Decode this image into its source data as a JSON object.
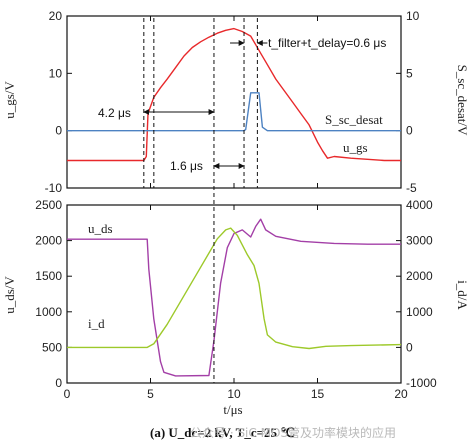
{
  "chart_data": [
    {
      "type": "line",
      "panel": "top",
      "x": {
        "label_visible": false,
        "range": [
          0,
          20
        ],
        "ticks": [
          0,
          5,
          10,
          15,
          20
        ]
      },
      "y_left": {
        "label": "u_gs/V",
        "range": [
          -10,
          20
        ],
        "ticks": [
          -10,
          0,
          10,
          20
        ]
      },
      "y_right": {
        "label": "S_sc_desat",
        "range": [
          -5,
          10
        ],
        "ticks": [
          -5,
          0,
          5,
          10
        ]
      },
      "grid": false,
      "series": [
        {
          "name": "u_gs",
          "axis": "left",
          "color": "#e8292b",
          "points": [
            [
              0,
              -5.2
            ],
            [
              4.6,
              -5.2
            ],
            [
              4.75,
              -4.5
            ],
            [
              4.85,
              3.0
            ],
            [
              5.2,
              5.8
            ],
            [
              5.6,
              7.5
            ],
            [
              6.0,
              9.0
            ],
            [
              6.5,
              11.0
            ],
            [
              7.0,
              13.0
            ],
            [
              7.5,
              14.5
            ],
            [
              8.0,
              15.5
            ],
            [
              8.5,
              16.3
            ],
            [
              9.0,
              17.0
            ],
            [
              9.5,
              17.5
            ],
            [
              10.0,
              17.8
            ],
            [
              10.5,
              17.3
            ],
            [
              11.0,
              16.5
            ],
            [
              11.3,
              15.0
            ],
            [
              11.6,
              13.5
            ],
            [
              12.0,
              11.5
            ],
            [
              12.5,
              9.0
            ],
            [
              13.0,
              7.0
            ],
            [
              13.5,
              5.0
            ],
            [
              14.0,
              3.0
            ],
            [
              14.5,
              1.0
            ],
            [
              15.0,
              -2.0
            ],
            [
              15.3,
              -3.5
            ],
            [
              15.6,
              -4.8
            ],
            [
              16.0,
              -4.5
            ],
            [
              17.0,
              -4.8
            ],
            [
              18.0,
              -5.0
            ],
            [
              19.0,
              -5.2
            ],
            [
              20.0,
              -5.2
            ]
          ]
        },
        {
          "name": "S_sc_desat",
          "axis": "right",
          "color": "#4d82c2",
          "points": [
            [
              0,
              0
            ],
            [
              10.6,
              0
            ],
            [
              10.7,
              0.1
            ],
            [
              11.0,
              3.3
            ],
            [
              11.5,
              3.3
            ],
            [
              11.7,
              0.3
            ],
            [
              12.0,
              0
            ],
            [
              20,
              0
            ]
          ]
        }
      ],
      "annotations": [
        {
          "text": "4.2 μs"
        },
        {
          "text": "1.6 μs"
        },
        {
          "text": "t_filter+t_delay=0.6 μs"
        }
      ]
    },
    {
      "type": "line",
      "panel": "bottom",
      "x": {
        "label": "t/μs",
        "range": [
          0,
          20
        ],
        "ticks": [
          0,
          5,
          10,
          15,
          20
        ]
      },
      "y_left": {
        "label": "u_ds/V",
        "range": [
          0,
          2500
        ],
        "ticks": [
          0,
          500,
          1000,
          1500,
          2000,
          2500
        ]
      },
      "y_right": {
        "label": "i_d/A",
        "range": [
          -1000,
          4000
        ],
        "ticks": [
          -1000,
          0,
          1000,
          2000,
          3000,
          4000
        ]
      },
      "grid": false,
      "series": [
        {
          "name": "u_ds",
          "axis": "left",
          "color": "#a33fa7",
          "points": [
            [
              0,
              2020
            ],
            [
              4.8,
              2020
            ],
            [
              4.9,
              1600
            ],
            [
              5.2,
              900
            ],
            [
              5.6,
              300
            ],
            [
              5.8,
              150
            ],
            [
              6.5,
              100
            ],
            [
              8.5,
              105
            ],
            [
              8.8,
              600
            ],
            [
              9.2,
              1400
            ],
            [
              9.6,
              1900
            ],
            [
              10.0,
              2100
            ],
            [
              10.5,
              2150
            ],
            [
              11.0,
              2050
            ],
            [
              11.3,
              2200
            ],
            [
              11.6,
              2300
            ],
            [
              11.9,
              2150
            ],
            [
              12.5,
              2060
            ],
            [
              14,
              1990
            ],
            [
              16,
              1960
            ],
            [
              18,
              1950
            ],
            [
              20,
              1950
            ]
          ]
        },
        {
          "name": "i_d",
          "axis": "right",
          "color": "#9dc92a",
          "points": [
            [
              0,
              0
            ],
            [
              4.8,
              0
            ],
            [
              5.2,
              100
            ],
            [
              6.0,
              650
            ],
            [
              7.0,
              1450
            ],
            [
              8.0,
              2250
            ],
            [
              9.0,
              3050
            ],
            [
              9.5,
              3300
            ],
            [
              9.8,
              3350
            ],
            [
              10.2,
              3150
            ],
            [
              10.8,
              2600
            ],
            [
              11.2,
              2300
            ],
            [
              11.5,
              1800
            ],
            [
              11.8,
              800
            ],
            [
              12.0,
              350
            ],
            [
              12.5,
              150
            ],
            [
              13.5,
              20
            ],
            [
              14.5,
              -30
            ],
            [
              15.5,
              30
            ],
            [
              17,
              50
            ],
            [
              20,
              80
            ]
          ]
        }
      ]
    }
  ],
  "text": {
    "top_ylabel": "u_gs/V",
    "top_rlabel": "S_sc_desat/V",
    "bot_ylabel": "u_ds/V",
    "bot_rlabel": "i_d/A",
    "xlabel": "t/μs",
    "series_label_ugs": "u_gs",
    "series_label_sdesat": "S_sc_desat",
    "series_label_uds": "u_ds",
    "series_label_id": "i_d",
    "ann1": "4.2 μs",
    "ann2": "1.6 μs",
    "ann3": "t_filter+t_delay=0.6 μs",
    "caption": "(a) U_dc=2 kV, T_c=25 ℃",
    "watermark": "公众号 · SiC MOS管及功率模块的应用"
  },
  "markers_us": [
    4.6,
    5.2,
    8.8,
    10.6,
    11.4
  ],
  "colors": {
    "ugs": "#e8292b",
    "sdesat": "#4d82c2",
    "uds": "#a33fa7",
    "id": "#9dc92a"
  }
}
